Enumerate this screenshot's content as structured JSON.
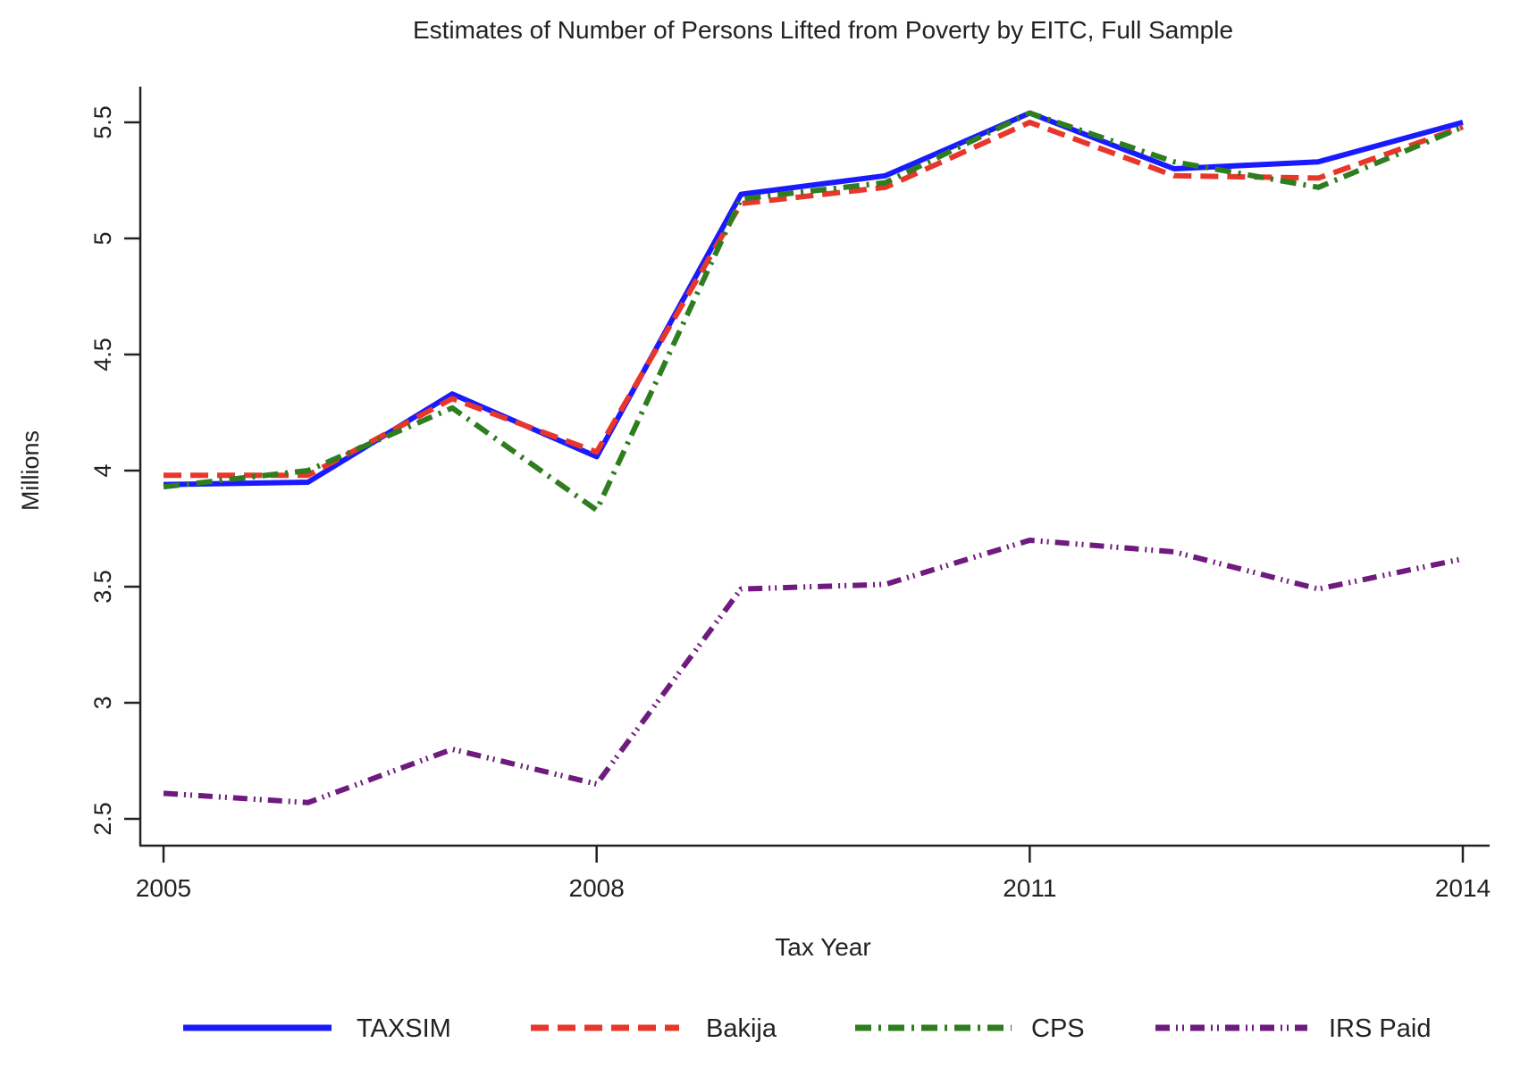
{
  "chart_data": {
    "type": "line",
    "title": "Estimates of Number of Persons Lifted from Poverty by EITC, Full Sample",
    "xlabel": "Tax Year",
    "ylabel": "Millions",
    "x": [
      2005,
      2006,
      2007,
      2008,
      2009,
      2010,
      2011,
      2012,
      2013,
      2014
    ],
    "xlim": [
      2005,
      2014
    ],
    "ylim": [
      2.5,
      5.5
    ],
    "xticks": [
      "2005",
      "2008",
      "2011",
      "2014"
    ],
    "xtick_values": [
      2005,
      2008,
      2011,
      2014
    ],
    "yticks": [
      "2.5",
      "3",
      "3.5",
      "4",
      "4.5",
      "5",
      "5.5"
    ],
    "ytick_values": [
      2.5,
      3,
      3.5,
      4,
      4.5,
      5,
      5.5
    ],
    "grid": false,
    "legend_position": "bottom",
    "series": [
      {
        "name": "TAXSIM",
        "color": "#1a1aff",
        "style": "solid",
        "values": [
          3.94,
          3.95,
          4.33,
          4.06,
          5.19,
          5.27,
          5.54,
          5.3,
          5.33,
          5.5
        ]
      },
      {
        "name": "Bakija",
        "color": "#e8372a",
        "style": "dash",
        "values": [
          3.98,
          3.98,
          4.31,
          4.08,
          5.15,
          5.22,
          5.5,
          5.27,
          5.26,
          5.48
        ]
      },
      {
        "name": "CPS",
        "color": "#2e7d1e",
        "style": "dashdot",
        "values": [
          3.93,
          4.0,
          4.27,
          3.83,
          5.17,
          5.24,
          5.54,
          5.33,
          5.22,
          5.48
        ]
      },
      {
        "name": "IRS Paid",
        "color": "#6f1a7f",
        "style": "dashdotdot",
        "values": [
          2.61,
          2.57,
          2.8,
          2.65,
          3.49,
          3.51,
          3.7,
          3.65,
          3.49,
          3.62
        ]
      }
    ]
  }
}
